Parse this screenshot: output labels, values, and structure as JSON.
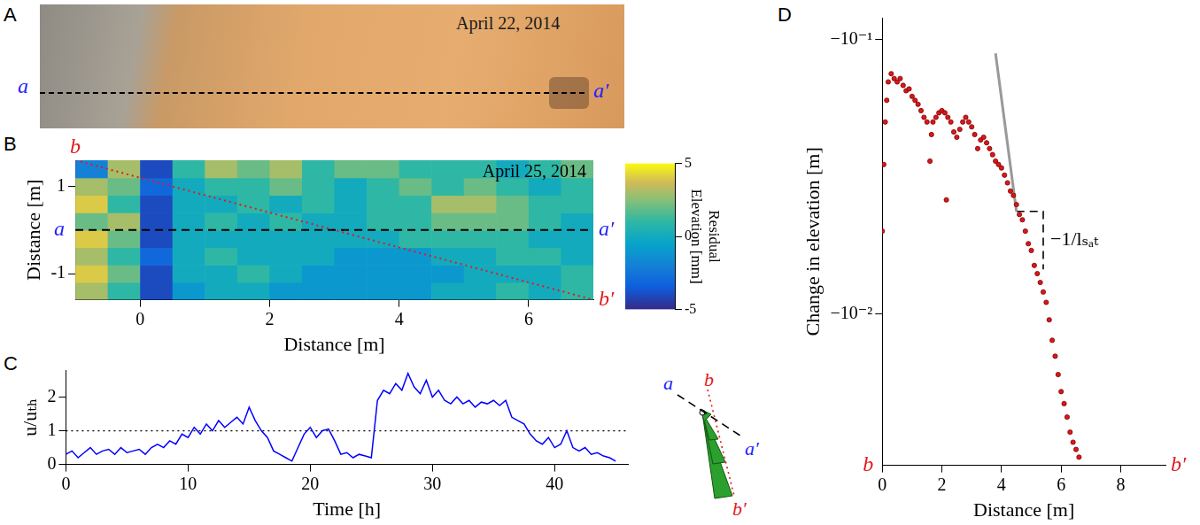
{
  "photo": {
    "letter": "A",
    "date": "April 22, 2014",
    "line": {
      "start": "a",
      "end": "a′",
      "color": "#000000",
      "line_style": "dashed"
    }
  },
  "chart_data": [
    {
      "letter": "B",
      "type": "heatmap",
      "date": "April 25, 2014",
      "x_label": "Distance [m]",
      "y_label": "Distance [m]",
      "xlim": [
        -1,
        7
      ],
      "xticks": [
        0,
        2,
        4,
        6
      ],
      "ylim": [
        -1.6,
        1.6
      ],
      "yticks": [
        -1,
        1
      ],
      "grid": false,
      "cells": {
        "x_edges": [
          -1,
          -0.5,
          0,
          0.5,
          1,
          1.5,
          2,
          2.5,
          3,
          3.5,
          4,
          4.5,
          5,
          5.5,
          6,
          6.5,
          7
        ],
        "y_edges": [
          -1.6,
          -1.2,
          -0.8,
          -0.4,
          0,
          0.4,
          0.8,
          1.2,
          1.6
        ],
        "values": [
          [
            3,
            1,
            -4,
            -1,
            0,
            0,
            -1,
            -1,
            -1,
            -1,
            -1,
            0,
            0,
            1,
            0,
            1
          ],
          [
            4,
            2,
            -4,
            0,
            0,
            1,
            0,
            -1,
            -1,
            -1,
            -1,
            -1,
            0,
            0,
            0,
            1
          ],
          [
            3,
            1,
            -3,
            0,
            1,
            0,
            0,
            0,
            -1,
            -1,
            -1,
            0,
            0,
            1,
            1,
            0
          ],
          [
            4,
            2,
            -4,
            0,
            0,
            0,
            0,
            0,
            0,
            0,
            1,
            1,
            1,
            1,
            0,
            0
          ],
          [
            2,
            3,
            -4,
            0,
            1,
            0,
            1,
            0,
            0,
            1,
            1,
            2,
            2,
            2,
            1,
            0
          ],
          [
            4,
            1,
            -4,
            0,
            0,
            1,
            0,
            1,
            0,
            1,
            1,
            3,
            3,
            2,
            1,
            1
          ],
          [
            3,
            2,
            -3,
            0,
            1,
            1,
            2,
            1,
            0,
            1,
            2,
            1,
            2,
            1,
            0,
            1
          ],
          [
            -2,
            3,
            -4,
            1,
            3,
            2,
            3,
            1,
            2,
            2,
            1,
            1,
            1,
            0,
            1,
            2
          ]
        ]
      },
      "colorbar": {
        "label": "Residual Elevation [mm]",
        "range": [
          -5,
          5
        ],
        "ticks": [
          -5,
          0,
          5
        ]
      },
      "lines": [
        {
          "start": "a",
          "end": "a′",
          "x": [
            -1,
            7
          ],
          "y": [
            0,
            0
          ],
          "color": "#000000",
          "line_style": "dashed"
        },
        {
          "start": "b",
          "end": "b′",
          "x": [
            -1,
            7
          ],
          "y": [
            1.6,
            -1.6
          ],
          "color": "#e3191c",
          "line_style": "dotted"
        }
      ]
    },
    {
      "letter": "C",
      "type": "line",
      "x_label": "Time [h]",
      "y_label": "u/uₜₕ",
      "x": [
        0,
        0.5,
        1,
        1.5,
        2,
        2.5,
        3,
        3.5,
        4,
        4.5,
        5,
        5.5,
        6,
        6.5,
        7,
        7.5,
        8,
        8.5,
        9,
        9.5,
        10,
        10.5,
        11,
        11.5,
        12,
        12.5,
        13,
        13.5,
        14,
        14.5,
        15,
        15.5,
        16,
        16.5,
        17,
        17.5,
        18,
        18.5,
        19,
        19.5,
        20,
        20.5,
        21,
        21.5,
        22,
        22.5,
        23,
        23.5,
        24,
        24.5,
        25,
        25.5,
        26,
        26.5,
        27,
        27.5,
        28,
        28.5,
        29,
        29.5,
        30,
        30.5,
        31,
        31.5,
        32,
        32.5,
        33,
        33.5,
        34,
        34.5,
        35,
        35.5,
        36,
        36.5,
        37,
        37.5,
        38,
        38.5,
        39,
        39.5,
        40,
        40.5,
        41,
        41.5,
        42,
        42.5,
        43,
        43.5,
        44,
        44.5,
        45
      ],
      "values": [
        0.3,
        0.4,
        0.2,
        0.35,
        0.5,
        0.3,
        0.4,
        0.45,
        0.3,
        0.5,
        0.35,
        0.4,
        0.45,
        0.3,
        0.5,
        0.6,
        0.5,
        0.7,
        0.6,
        0.9,
        0.8,
        1.1,
        0.9,
        1.2,
        1.0,
        1.3,
        1.1,
        1.25,
        1.4,
        1.2,
        1.7,
        1.3,
        1.0,
        0.8,
        0.4,
        0.3,
        0.2,
        0.1,
        0.5,
        0.9,
        1.1,
        0.8,
        1.0,
        1.05,
        0.7,
        0.3,
        0.35,
        0.2,
        0.3,
        0.25,
        0.2,
        1.9,
        2.2,
        2.1,
        2.4,
        2.2,
        2.7,
        2.3,
        2.1,
        2.5,
        2.0,
        2.2,
        1.9,
        1.8,
        2.0,
        1.8,
        1.9,
        1.7,
        1.85,
        1.8,
        1.9,
        1.75,
        1.9,
        1.4,
        1.3,
        1.2,
        0.9,
        0.7,
        0.6,
        0.8,
        0.5,
        0.6,
        1.0,
        0.5,
        0.4,
        0.5,
        0.3,
        0.35,
        0.25,
        0.2,
        0.1
      ],
      "color": "#0000ff",
      "xlim": [
        0,
        46
      ],
      "xticks": [
        0,
        10,
        20,
        30,
        40
      ],
      "ylim": [
        0,
        2.8
      ],
      "yticks": [
        0,
        1,
        2
      ],
      "grid": false,
      "reference_line": {
        "y": 1,
        "line_style": "dotted"
      }
    },
    {
      "letter": "D",
      "type": "scatter",
      "log": "y",
      "x_label": "Distance [m]",
      "y_label": "Change in elevation [m]",
      "x": [
        0,
        0.05,
        0.1,
        0.15,
        0.2,
        0.3,
        0.4,
        0.5,
        0.6,
        0.7,
        0.8,
        0.9,
        1.0,
        1.1,
        1.2,
        1.3,
        1.4,
        1.5,
        1.6,
        1.65,
        1.7,
        1.8,
        1.9,
        2.0,
        2.1,
        2.15,
        2.2,
        2.3,
        2.4,
        2.5,
        2.6,
        2.7,
        2.8,
        2.9,
        3.0,
        3.1,
        3.2,
        3.3,
        3.4,
        3.5,
        3.6,
        3.7,
        3.8,
        3.9,
        4.0,
        4.1,
        4.2,
        4.3,
        4.4,
        4.5,
        4.6,
        4.7,
        4.8,
        4.9,
        5.0,
        5.1,
        5.2,
        5.3,
        5.4,
        5.5,
        5.6,
        5.7,
        5.8,
        5.9,
        6.0,
        6.1,
        6.2,
        6.3,
        6.4,
        6.5,
        6.6
      ],
      "values": [
        -0.02,
        -0.035,
        -0.05,
        -0.06,
        -0.07,
        -0.075,
        -0.072,
        -0.07,
        -0.072,
        -0.068,
        -0.065,
        -0.066,
        -0.062,
        -0.06,
        -0.058,
        -0.055,
        -0.052,
        -0.05,
        -0.036,
        -0.045,
        -0.05,
        -0.052,
        -0.054,
        -0.055,
        -0.054,
        -0.026,
        -0.052,
        -0.05,
        -0.046,
        -0.044,
        -0.047,
        -0.05,
        -0.052,
        -0.05,
        -0.048,
        -0.045,
        -0.04,
        -0.043,
        -0.044,
        -0.042,
        -0.04,
        -0.038,
        -0.036,
        -0.035,
        -0.034,
        -0.032,
        -0.03,
        -0.028,
        -0.027,
        -0.025,
        -0.023,
        -0.022,
        -0.02,
        -0.018,
        -0.017,
        -0.015,
        -0.014,
        -0.013,
        -0.012,
        -0.011,
        -0.0095,
        -0.008,
        -0.007,
        -0.006,
        -0.0052,
        -0.0047,
        -0.0042,
        -0.0037,
        -0.0034,
        -0.0032,
        -0.003
      ],
      "color": "#d7191c",
      "marker": "circle",
      "xlim": [
        0,
        9.5
      ],
      "xticks": [
        0,
        2,
        4,
        6,
        8
      ],
      "ylim": [
        -0.0028,
        -0.12
      ],
      "yticks": [
        {
          "value": -0.1,
          "label": "−10⁻¹"
        },
        {
          "value": -0.01,
          "label": "−10⁻²"
        }
      ],
      "grid": false,
      "x_ends": [
        "b",
        "b′"
      ],
      "slope_line": {
        "x": [
          3.8,
          4.5
        ],
        "y": [
          -0.089,
          -0.0236
        ],
        "color": "#999999"
      },
      "slope_bracket": {
        "x": [
          4.5,
          5.4,
          5.4
        ],
        "y": [
          -0.0236,
          -0.0236,
          -0.0145
        ],
        "line_style": "dashed",
        "label": "−1/lₛₐₜ"
      }
    }
  ],
  "sketch": {
    "lines": [
      {
        "start": "a",
        "end": "a′",
        "color": "#000000",
        "line_style": "dashed"
      },
      {
        "start": "b",
        "end": "b′",
        "color": "#e3191c",
        "line_style": "dotted"
      }
    ]
  }
}
